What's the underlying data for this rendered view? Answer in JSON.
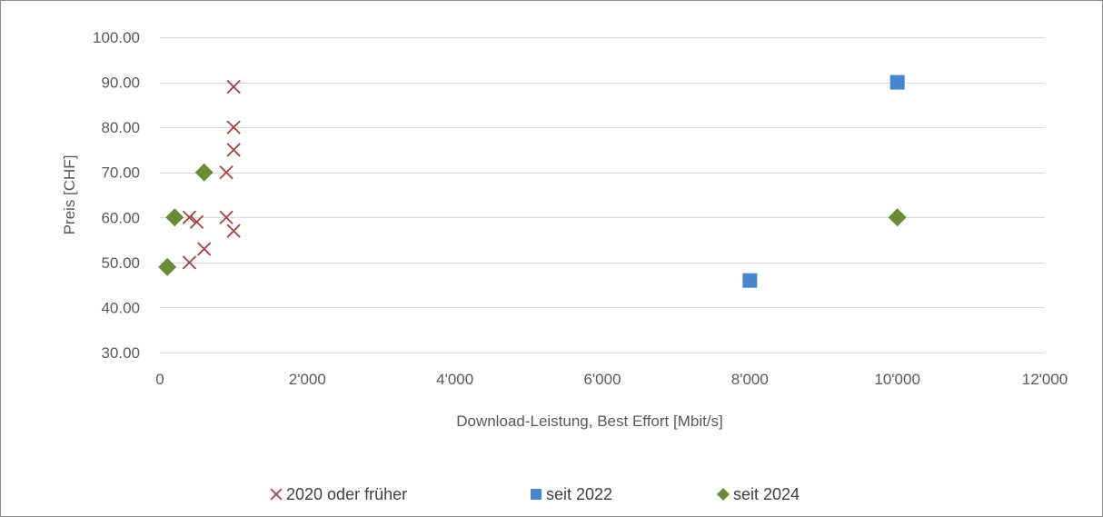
{
  "chart_data": {
    "type": "scatter",
    "title": "",
    "xlabel": "Download-Leistung, Best Effort [Mbit/s]",
    "ylabel": "Preis [CHF]",
    "xlim": [
      0,
      12000
    ],
    "ylim": [
      30,
      100
    ],
    "x_ticks": [
      0,
      2000,
      4000,
      6000,
      8000,
      10000,
      12000
    ],
    "x_tick_labels": [
      "0",
      "2'000",
      "4'000",
      "6'000",
      "8'000",
      "10'000",
      "12'000"
    ],
    "y_ticks": [
      30,
      40,
      50,
      60,
      70,
      80,
      90,
      100
    ],
    "y_tick_labels": [
      "30.00",
      "40.00",
      "50.00",
      "60.00",
      "70.00",
      "80.00",
      "90.00",
      "100.00"
    ],
    "grid": true,
    "legend_position": "bottom",
    "series": [
      {
        "name": "2020 oder früher",
        "marker": "x",
        "color": "#A5403F",
        "points": [
          {
            "x": 1000,
            "y": 89
          },
          {
            "x": 1000,
            "y": 80
          },
          {
            "x": 1000,
            "y": 75
          },
          {
            "x": 900,
            "y": 70
          },
          {
            "x": 400,
            "y": 60
          },
          {
            "x": 500,
            "y": 59
          },
          {
            "x": 900,
            "y": 60
          },
          {
            "x": 1000,
            "y": 57
          },
          {
            "x": 600,
            "y": 53
          },
          {
            "x": 400,
            "y": 50
          }
        ]
      },
      {
        "name": "seit 2022",
        "marker": "square",
        "color": "#4A86D0",
        "points": [
          {
            "x": 10000,
            "y": 90
          },
          {
            "x": 8000,
            "y": 46
          }
        ]
      },
      {
        "name": "seit 2024",
        "marker": "diamond",
        "color": "#6A8B37",
        "points": [
          {
            "x": 600,
            "y": 70
          },
          {
            "x": 200,
            "y": 60
          },
          {
            "x": 100,
            "y": 49
          },
          {
            "x": 10000,
            "y": 60
          }
        ]
      }
    ]
  }
}
